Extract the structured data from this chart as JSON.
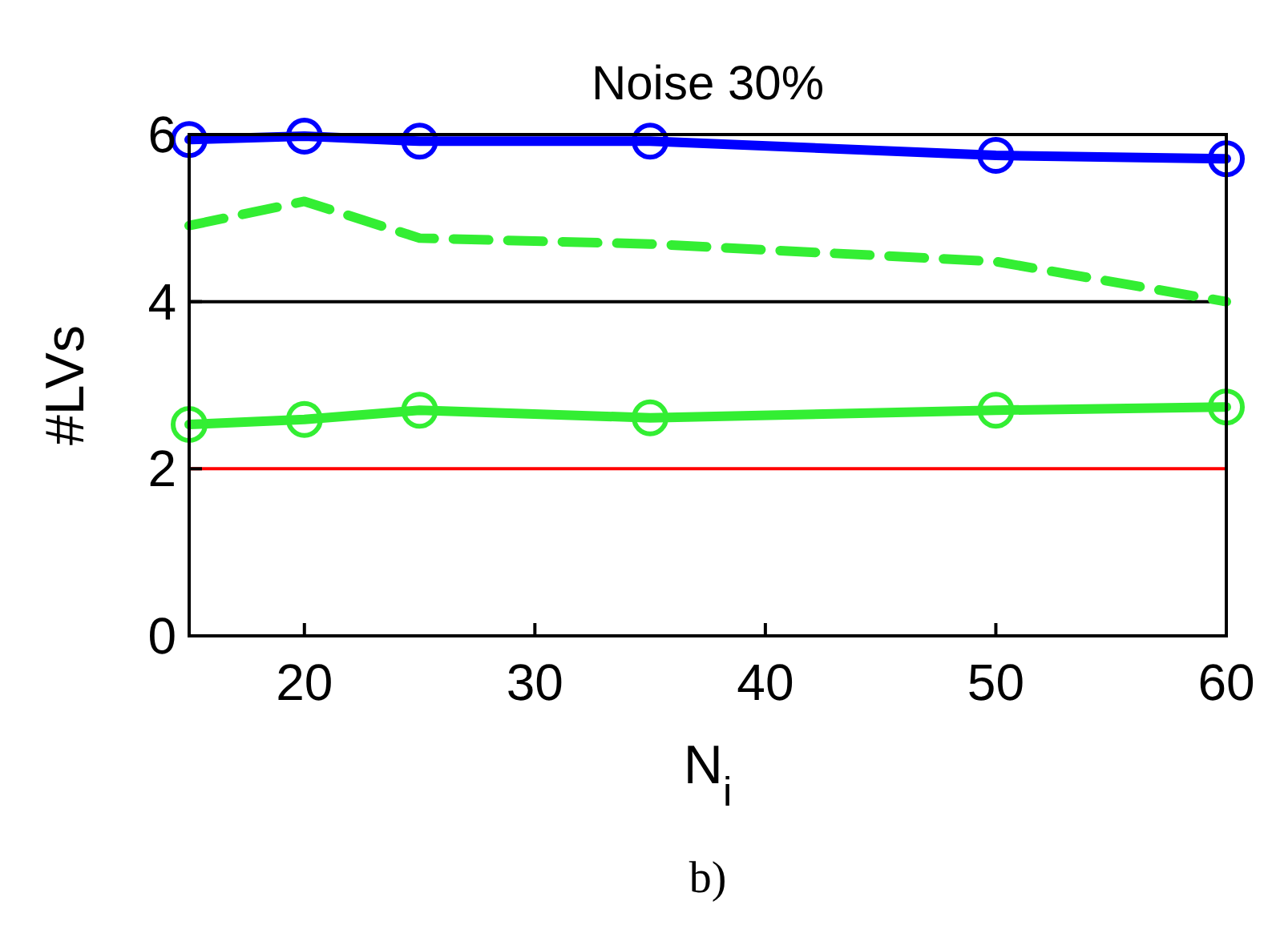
{
  "chart_data": {
    "type": "line",
    "title": "Noise 30%",
    "xlabel": "N$_{i}$",
    "ylabel": "#LVs",
    "annotations": [
      "b)"
    ],
    "x": [
      15,
      20,
      25,
      35,
      50,
      60
    ],
    "series": [
      {
        "color": "#0000ff",
        "values": [
          5.94,
          5.98,
          5.92,
          5.92,
          5.75,
          5.71
        ],
        "marker": "circle",
        "line_style": "solid"
      },
      {
        "color": "#33ee33",
        "values": [
          4.91,
          5.2,
          4.76,
          4.69,
          4.48,
          4.0
        ],
        "marker": "none",
        "line_style": "dashed"
      },
      {
        "color": "#33ee33",
        "values": [
          2.53,
          2.59,
          2.7,
          2.61,
          2.7,
          2.74
        ],
        "marker": "circle",
        "line_style": "solid"
      }
    ],
    "ref_lines": [
      {
        "axis": "y",
        "value": 4,
        "color": "#000000"
      },
      {
        "axis": "y",
        "value": 2,
        "color": "#ff0000"
      }
    ],
    "xlim": [
      15,
      60
    ],
    "xticks": [
      20,
      30,
      40,
      50,
      60
    ],
    "ylim": [
      0,
      6
    ],
    "yticks": [
      0,
      2,
      4,
      6
    ]
  }
}
